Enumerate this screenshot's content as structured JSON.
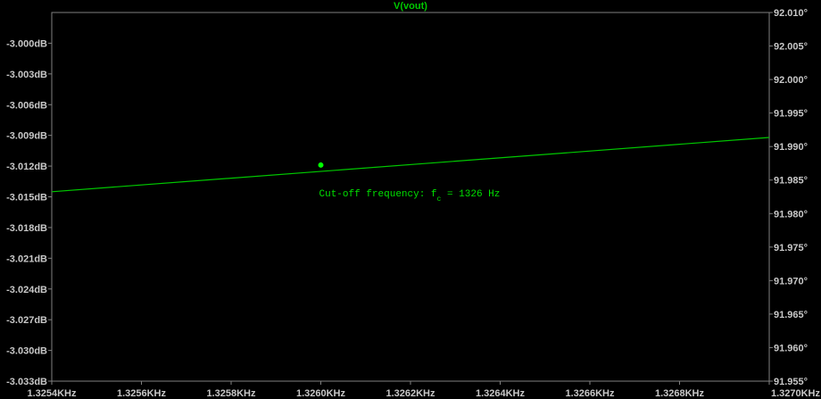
{
  "chart_data": {
    "type": "line",
    "title": "V(vout)",
    "background": "#000000",
    "axis_color": "#808080",
    "tick_label_color": "#c8c8c8",
    "trace_color": "#00c800",
    "marker_color": "#00ff00",
    "grid": false,
    "x": {
      "unit": "KHz",
      "range": [
        1.3254,
        1.327
      ],
      "ticks": [
        1.3254,
        1.3256,
        1.3258,
        1.326,
        1.3262,
        1.3264,
        1.3266,
        1.3268,
        1.327
      ],
      "tick_labels": [
        "1.3254KHz",
        "1.3256KHz",
        "1.3258KHz",
        "1.3260KHz",
        "1.3262KHz",
        "1.3264KHz",
        "1.3266KHz",
        "1.3268KHz",
        "1.3270KHz"
      ]
    },
    "y_left": {
      "unit": "dB",
      "range": [
        -3.033,
        -2.997
      ],
      "ticks": [
        -3.0,
        -3.003,
        -3.006,
        -3.009,
        -3.012,
        -3.015,
        -3.018,
        -3.021,
        -3.024,
        -3.027,
        -3.03,
        -3.033
      ],
      "tick_labels": [
        "-3.000dB",
        "-3.003dB",
        "-3.006dB",
        "-3.009dB",
        "-3.012dB",
        "-3.015dB",
        "-3.018dB",
        "-3.021dB",
        "-3.024dB",
        "-3.027dB",
        "-3.030dB",
        "-3.033dB"
      ]
    },
    "y_right": {
      "unit": "°",
      "range": [
        91.955,
        92.01
      ],
      "ticks": [
        92.01,
        92.005,
        92.0,
        91.995,
        91.99,
        91.985,
        91.98,
        91.975,
        91.97,
        91.965,
        91.96,
        91.955
      ],
      "tick_labels": [
        "92.010°",
        "92.005°",
        "92.000°",
        "91.995°",
        "91.990°",
        "91.985°",
        "91.980°",
        "91.975°",
        "91.970°",
        "91.965°",
        "91.960°",
        "91.955°"
      ]
    },
    "series": [
      {
        "name": "V(vout)",
        "axis": "y_left",
        "x": [
          1.3254,
          1.327
        ],
        "y": [
          -3.0145,
          -3.0092
        ]
      }
    ],
    "marker": {
      "x": 1.326,
      "y": -3.0119
    },
    "annotation": {
      "text_prefix": "Cut-off frequency: f",
      "subscript": "c",
      "text_suffix": " = 1326 Hz",
      "x": 1.326,
      "y": -3.0145
    }
  }
}
